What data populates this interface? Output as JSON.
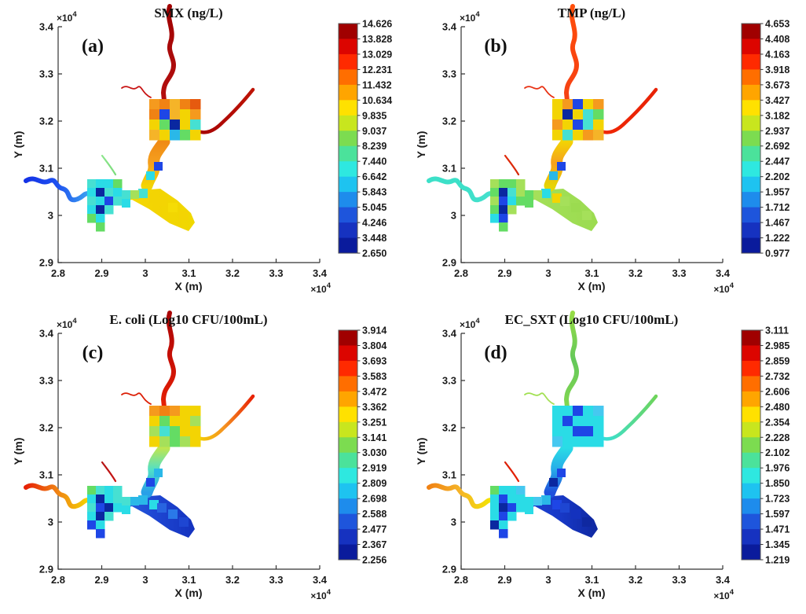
{
  "figure": {
    "background": "#ffffff"
  },
  "axes": {
    "x_label": "X (m)",
    "y_label": "Y (m)",
    "exp_base": "×10",
    "exp_sup": "4",
    "x_ticks": [
      "2.8",
      "2.9",
      "3",
      "3.1",
      "3.2",
      "3.3",
      "3.4"
    ],
    "y_ticks": [
      "3.4",
      "3.3",
      "3.2",
      "3.1",
      "3",
      "2.9"
    ]
  },
  "colorbar_colors": [
    "#A00000",
    "#DC0500",
    "#FF2A00",
    "#FF6E00",
    "#FFA500",
    "#FFE100",
    "#C8E61E",
    "#7CDC50",
    "#4BE29B",
    "#2EE8E0",
    "#1EC3F0",
    "#1E8CEC",
    "#1E55DC",
    "#1632C0",
    "#0A1B9C"
  ],
  "panels": [
    {
      "label": "(a)",
      "title": "SMX (ng/L)",
      "cbar_ticks": [
        "14.626",
        "13.828",
        "13.029",
        "12.231",
        "11.432",
        "10.634",
        "9.835",
        "9.037",
        "8.239",
        "7.440",
        "6.642",
        "5.843",
        "5.045",
        "4.246",
        "3.448",
        "2.650"
      ],
      "map": {
        "flows": {
          "north": [
            "#A00000",
            "#AA0A0A",
            "#B40F0F"
          ],
          "east": [
            "#A50505",
            "#B00A05",
            "#BE1405"
          ],
          "west": [
            "#1432E6",
            "#1E50F0",
            "#3CA0F0"
          ],
          "nw_trib": [
            "#C81414",
            "#C81414",
            "#C81414"
          ],
          "sw_trib": [
            "#8CE68C",
            "#82E082",
            "#7CDC7C"
          ],
          "channel": [
            "#F08A14",
            "#F5A01E",
            "#F3D403"
          ],
          "fan": [
            "#F5DC05",
            "#F3D403",
            "#F0D800"
          ]
        },
        "central_grid": [
          [
            "#F59A1E",
            "#F08214",
            "#F5B428",
            "#F08214",
            "#E65A0F"
          ],
          [
            "#F08214",
            "#1E46E6",
            "#F5B428",
            "#F3D403",
            "#F59A1E"
          ],
          [
            "#F3D403",
            "#64DC64",
            "#0A28A0",
            "#F3D403",
            "#46E0D2"
          ],
          [
            "#F5B428",
            "#F3D403",
            "#2AB8E8",
            "#64DC64",
            "#F3D403"
          ]
        ],
        "left_grid": [
          [
            "#46E0D2",
            "#2ADCE6",
            "#2ADCE6",
            "#64DC64"
          ],
          [
            "#2ADCE6",
            "#0A28A0",
            "#46E0D2",
            "#2ADCE6"
          ],
          [
            "#46E0D2",
            "#2ADCE6",
            "#1E46E6",
            "#46E0D2"
          ],
          [
            "#2ADCE6",
            "#0A28A0",
            "#46E0D2",
            ""
          ],
          [
            "#64DC64",
            "#2ADCE6",
            "",
            ""
          ],
          [
            "",
            "#64DC64",
            "",
            ""
          ]
        ],
        "channel_cells": [
          "#1E46E6",
          "#2ADCE6",
          "#46E0D2",
          "#F3D403"
        ],
        "arm_cells": [
          "#46E0D2",
          "#A5E05A",
          "#2ADCE6"
        ],
        "fan_cells": [
          "#F3D403",
          "#F5DC05",
          "#F3D403"
        ]
      }
    },
    {
      "label": "(b)",
      "title": "TMP (ng/L)",
      "cbar_ticks": [
        "4.653",
        "4.408",
        "4.163",
        "3.918",
        "3.673",
        "3.427",
        "3.182",
        "2.937",
        "2.692",
        "2.447",
        "2.202",
        "1.957",
        "1.712",
        "1.467",
        "1.222",
        "0.977"
      ],
      "map": {
        "flows": {
          "north": [
            "#FF4E0A",
            "#FA460F",
            "#F54214"
          ],
          "east": [
            "#F02805",
            "#EC2505",
            "#E82205"
          ],
          "west": [
            "#3CE0C8",
            "#3CE0C8",
            "#46E0CD"
          ],
          "nw_trib": [
            "#E83214",
            "#E83214",
            "#E83214"
          ],
          "sw_trib": [
            "#E02A0A",
            "#DC2A0A",
            "#D42A0A"
          ],
          "channel": [
            "#F3D403",
            "#F5A01E",
            "#E6D405"
          ],
          "fan": [
            "#A5E05A",
            "#A0DE55",
            "#9BDB50"
          ]
        },
        "central_grid": [
          [
            "#F3D403",
            "#F59A1E",
            "#1E46E6",
            "#F3D403",
            "#F59A1E"
          ],
          [
            "#F3D403",
            "#0A28A0",
            "#F3D403",
            "#46E0D2",
            "#64DC64"
          ],
          [
            "#F59A1E",
            "#F3D403",
            "#1E46E6",
            "#46E0D2",
            "#F3D403"
          ],
          [
            "#F3D403",
            "#46E0D2",
            "#F3D403",
            "#F59A1E",
            "#F5B428"
          ]
        ],
        "left_grid": [
          [
            "#A5E05A",
            "#64DC64",
            "#64DC64",
            "#A5E05A"
          ],
          [
            "#64DC64",
            "#0A28A0",
            "#46E0D2",
            "#A5E05A"
          ],
          [
            "#A5E05A",
            "#1E46E6",
            "#2ADCE6",
            "#64DC64"
          ],
          [
            "#64DC64",
            "#0A28A0",
            "#A5E05A",
            ""
          ],
          [
            "#2ADCE6",
            "#1E46E6",
            "",
            ""
          ],
          [
            "",
            "#64DC64",
            "",
            ""
          ]
        ],
        "channel_cells": [
          "#1E46E6",
          "#2AB8E8",
          "#2ADCE6",
          "#F3D403"
        ],
        "arm_cells": [
          "#64DC64",
          "#A5E05A",
          "#64DC64"
        ],
        "fan_cells": [
          "#A5E05A",
          "#9BDB50",
          "#A5E05A"
        ]
      }
    },
    {
      "label": "(c)",
      "title": "E. coli (Log10 CFU/100mL)",
      "cbar_ticks": [
        "3.914",
        "3.804",
        "3.693",
        "3.583",
        "3.472",
        "3.362",
        "3.251",
        "3.141",
        "3.030",
        "2.919",
        "2.809",
        "2.698",
        "2.588",
        "2.477",
        "2.367",
        "2.256"
      ],
      "map": {
        "flows": {
          "north": [
            "#AA0505",
            "#C80F05",
            "#E62105"
          ],
          "east": [
            "#F3D403",
            "#F59121",
            "#E82105"
          ],
          "west": [
            "#E62105",
            "#F08214",
            "#F3D403"
          ],
          "nw_trib": [
            "#DC1E05",
            "#DC1E05",
            "#DC1E05"
          ],
          "sw_trib": [
            "#B41414",
            "#BE1414",
            "#C81414"
          ],
          "channel": [
            "#BEE650",
            "#50E0C8",
            "#28A0E8"
          ],
          "fan": [
            "#2864E0",
            "#1E46D2",
            "#1432BE"
          ]
        },
        "central_grid": [
          [
            "#F59A1E",
            "#F08214",
            "#F59A1E",
            "#F3D403",
            "#F3D403"
          ],
          [
            "#F3D403",
            "#64DC64",
            "#F3D403",
            "#F3D403",
            "#A5E05A"
          ],
          [
            "#A5E05A",
            "#46E0D2",
            "#64DC64",
            "#F3D403",
            "#F3D403"
          ],
          [
            "#F3D403",
            "#A5E05A",
            "#64DC64",
            "#A5E05A",
            "#F3D403"
          ]
        ],
        "left_grid": [
          [
            "#64DC64",
            "#46E0D2",
            "#2ADCE6",
            "#46E0D2"
          ],
          [
            "#2ADCE6",
            "#0A28A0",
            "#2ADCE6",
            "#46E0D2"
          ],
          [
            "#46E0D2",
            "#1E46E6",
            "#0A28A0",
            "#2ADCE6"
          ],
          [
            "#2ADCE6",
            "#0A28A0",
            "#46E0D2",
            ""
          ],
          [
            "#1E46E6",
            "#2ADCE6",
            "",
            ""
          ],
          [
            "",
            "#1E46E6",
            "",
            ""
          ]
        ],
        "channel_cells": [
          "#2AB8E8",
          "#1E46E6",
          "#2AB8E8",
          "#2ADCE6"
        ],
        "arm_cells": [
          "#46E0D2",
          "#2AB8E8",
          "#2ADCE6"
        ],
        "fan_cells": [
          "#2864E0",
          "#2A78E8",
          "#1E46D2"
        ]
      }
    },
    {
      "label": "(d)",
      "title": "EC_SXT (Log10 CFU/100mL)",
      "cbar_ticks": [
        "3.111",
        "2.985",
        "2.859",
        "2.732",
        "2.606",
        "2.480",
        "2.354",
        "2.228",
        "2.102",
        "1.976",
        "1.850",
        "1.723",
        "1.597",
        "1.471",
        "1.345",
        "1.219"
      ],
      "map": {
        "flows": {
          "north": [
            "#96DC46",
            "#64C85A",
            "#82D750"
          ],
          "east": [
            "#32E0E0",
            "#50DCA0",
            "#6ED45A"
          ],
          "west": [
            "#F08214",
            "#F5B428",
            "#F3E403"
          ],
          "nw_trib": [
            "#A0E050",
            "#A0E050",
            "#A8E05A"
          ],
          "sw_trib": [
            "#DC1E05",
            "#E02005",
            "#E62105"
          ],
          "channel": [
            "#2ADCE6",
            "#28AAE8",
            "#1E50DC"
          ],
          "fan": [
            "#1E46D2",
            "#1839C8",
            "#0F28A0"
          ]
        },
        "central_grid": [
          [
            "#2ADCE6",
            "#2ADCE6",
            "#1E46E6",
            "#2ADCE6",
            "#46C8F0"
          ],
          [
            "#2ADCE6",
            "#1E46E6",
            "#2ADCE6",
            "#2ADCE6",
            "#2ADCE6"
          ],
          [
            "#2ADCE6",
            "#2ADCE6",
            "#1E46E6",
            "#1E46E6",
            "#2ADCE6"
          ],
          [
            "#46C8F0",
            "#2ADCE6",
            "#2ADCE6",
            "#2ADCE6",
            "#2ADCE6"
          ]
        ],
        "left_grid": [
          [
            "#64DC64",
            "#2ADCE6",
            "#2ADCE6",
            "#46C8F0"
          ],
          [
            "#2ADCE6",
            "#1E46E6",
            "#2ADCE6",
            "#2ADCE6"
          ],
          [
            "#2ADCE6",
            "#0A28A0",
            "#1E46E6",
            "#2ADCE6"
          ],
          [
            "#2ADCE6",
            "#1E46E6",
            "#2ADCE6",
            ""
          ],
          [
            "#0A28A0",
            "#2ADCE6",
            "",
            ""
          ],
          [
            "",
            "#1E46E6",
            "",
            ""
          ]
        ],
        "channel_cells": [
          "#1E46E6",
          "#0A28A0",
          "#2AB8E8",
          "#1E46E6"
        ],
        "arm_cells": [
          "#2ADCE6",
          "#46C8F0",
          "#2ADCE6"
        ],
        "fan_cells": [
          "#1E46D2",
          "#1432BE",
          "#0F28A0"
        ]
      }
    }
  ],
  "chart_data": {
    "type": "heatmap",
    "layout": "2x2 subplots; each is a spatial river/estuary network map colored by concentration with a discrete 15-band jet colorbar (16 tick labels)",
    "xlabel": "X (m)",
    "ylabel": "Y (m)",
    "axis_multiplier": "x10^4",
    "xlim": [
      2.8,
      3.4
    ],
    "ylim": [
      2.9,
      3.4
    ],
    "x_ticks": [
      2.8,
      2.9,
      3,
      3.1,
      3.2,
      3.3,
      3.4
    ],
    "y_ticks": [
      2.9,
      3,
      3.1,
      3.2,
      3.3,
      3.4
    ],
    "grid": false,
    "legend_position": "colorbar right of each subplot",
    "panels": [
      {
        "label": "(a)",
        "title": "SMX (ng/L)",
        "value_range": [
          2.65,
          14.626
        ],
        "colorbar_ticks": [
          14.626,
          13.828,
          13.029,
          12.231,
          11.432,
          10.634,
          9.835,
          9.037,
          8.239,
          7.44,
          6.642,
          5.843,
          5.045,
          4.246,
          3.448,
          2.65
        ],
        "spatial_pattern": "north and east upstream rivers dark red (highest ~13-15); central estuary orange/yellow with scattered blue cells; southwest patch cyan with dark blue cells; west river blue (lowest ~3-5); southeast fan yellow"
      },
      {
        "label": "(b)",
        "title": "TMP (ng/L)",
        "value_range": [
          0.977,
          4.653
        ],
        "colorbar_ticks": [
          4.653,
          4.408,
          4.163,
          3.918,
          3.673,
          3.427,
          3.182,
          2.937,
          2.692,
          2.447,
          2.202,
          1.957,
          1.712,
          1.467,
          1.222,
          0.977
        ],
        "spatial_pattern": "north river orange-red, east river red; central estuary yellow with blue cells; southwest patch green with dark blue cells; west river turquoise; southeast fan yellow-green"
      },
      {
        "label": "(c)",
        "title": "E. coli (Log10 CFU/100mL)",
        "value_range": [
          2.256,
          3.914
        ],
        "colorbar_ticks": [
          3.914,
          3.804,
          3.693,
          3.583,
          3.472,
          3.362,
          3.251,
          3.141,
          3.03,
          2.919,
          2.809,
          2.698,
          2.588,
          2.477,
          2.367,
          2.256
        ],
        "spatial_pattern": "north river dark red to red; east river red fading to yellow at junction; west river red-orange-yellow; central estuary yellow/green; channel grades green-cyan-blue southward; southwest patch and southeast fan blue (lowest)"
      },
      {
        "label": "(d)",
        "title": "EC_SXT (Log10 CFU/100mL)",
        "value_range": [
          1.219,
          3.111
        ],
        "colorbar_ticks": [
          3.111,
          2.985,
          2.859,
          2.732,
          2.606,
          2.48,
          2.354,
          2.228,
          2.102,
          1.976,
          1.85,
          1.723,
          1.597,
          1.471,
          1.345,
          1.219
        ],
        "spatial_pattern": "north river green, east river cyan-green; central estuary cyan with blue cells; channel and southeast fan dark blue (lowest); west river orange to yellow (highest); small red tributary near southwest patch"
      }
    ]
  }
}
